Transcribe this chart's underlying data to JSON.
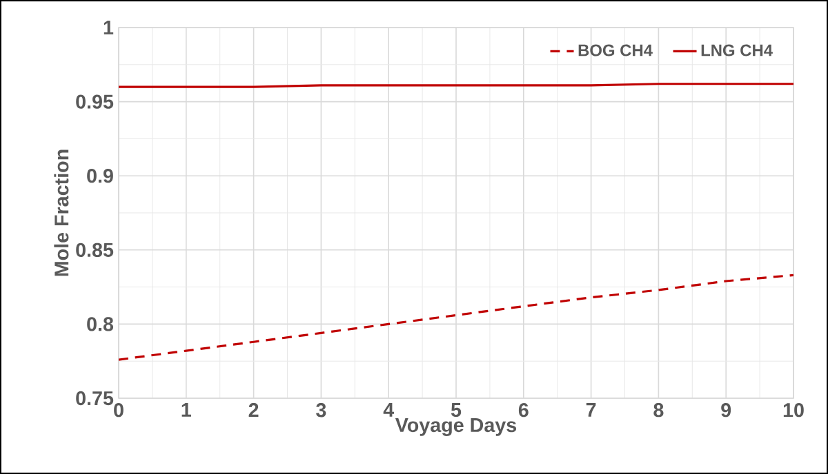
{
  "chart_data": {
    "type": "line",
    "xlabel": "Voyage Days",
    "ylabel": "Mole Fraction",
    "x": [
      0,
      1,
      2,
      3,
      4,
      5,
      6,
      7,
      8,
      9,
      10
    ],
    "series": [
      {
        "name": "BOG CH4",
        "color": "#c00000",
        "line_style": "dashed",
        "values": [
          0.776,
          0.782,
          0.788,
          0.794,
          0.8,
          0.806,
          0.812,
          0.818,
          0.823,
          0.829,
          0.833
        ]
      },
      {
        "name": "LNG CH4",
        "color": "#c00000",
        "line_style": "solid",
        "values": [
          0.96,
          0.96,
          0.96,
          0.961,
          0.961,
          0.961,
          0.961,
          0.961,
          0.962,
          0.962,
          0.962
        ]
      }
    ],
    "xlim": [
      0,
      10
    ],
    "xticks": [
      0,
      1,
      2,
      3,
      4,
      5,
      6,
      7,
      8,
      9,
      10
    ],
    "ylim": [
      0.75,
      1
    ],
    "yticks": [
      0.75,
      0.8,
      0.85,
      0.9,
      0.95,
      1
    ],
    "grid": true,
    "legend": "top right",
    "marker": "none"
  }
}
